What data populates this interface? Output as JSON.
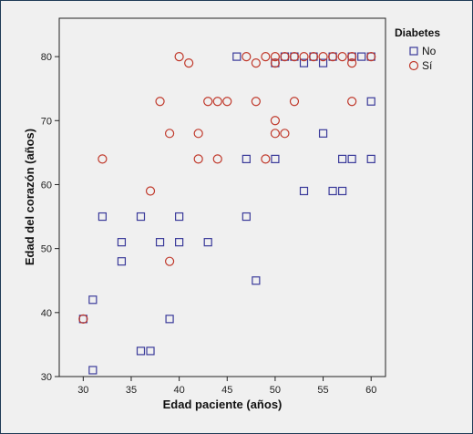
{
  "chart_data": {
    "type": "scatter",
    "xlabel": "Edad paciente (años)",
    "ylabel": "Edad del corazón (años)",
    "xlim": [
      27.5,
      61.5
    ],
    "ylim": [
      30,
      86
    ],
    "xticks": [
      30,
      35,
      40,
      45,
      50,
      55,
      60
    ],
    "yticks": [
      30,
      40,
      50,
      60,
      70,
      80
    ],
    "grid": false,
    "legend": {
      "title": "Diabetes",
      "placement": "top-right"
    },
    "series": [
      {
        "name": "No",
        "marker": "square",
        "color": "#3a3a9a",
        "points": [
          [
            30,
            39
          ],
          [
            31,
            42
          ],
          [
            31,
            31
          ],
          [
            32,
            55
          ],
          [
            34,
            51
          ],
          [
            34,
            48
          ],
          [
            36,
            55
          ],
          [
            36,
            34
          ],
          [
            37,
            34
          ],
          [
            38,
            51
          ],
          [
            39,
            39
          ],
          [
            40,
            55
          ],
          [
            40,
            51
          ],
          [
            43,
            51
          ],
          [
            46,
            80
          ],
          [
            47,
            64
          ],
          [
            47,
            55
          ],
          [
            48,
            45
          ],
          [
            50,
            79
          ],
          [
            50,
            64
          ],
          [
            51,
            80
          ],
          [
            52,
            80
          ],
          [
            53,
            79
          ],
          [
            53,
            59
          ],
          [
            54,
            80
          ],
          [
            55,
            79
          ],
          [
            55,
            68
          ],
          [
            56,
            80
          ],
          [
            56,
            59
          ],
          [
            57,
            64
          ],
          [
            57,
            59
          ],
          [
            58,
            80
          ],
          [
            58,
            64
          ],
          [
            59,
            80
          ],
          [
            60,
            80
          ],
          [
            60,
            73
          ],
          [
            60,
            64
          ]
        ]
      },
      {
        "name": "Sí",
        "marker": "circle",
        "color": "#c0392b",
        "points": [
          [
            30,
            39
          ],
          [
            32,
            64
          ],
          [
            37,
            59
          ],
          [
            38,
            73
          ],
          [
            39,
            68
          ],
          [
            39,
            48
          ],
          [
            40,
            80
          ],
          [
            41,
            79
          ],
          [
            42,
            68
          ],
          [
            42,
            64
          ],
          [
            43,
            73
          ],
          [
            44,
            73
          ],
          [
            44,
            64
          ],
          [
            45,
            73
          ],
          [
            47,
            80
          ],
          [
            48,
            79
          ],
          [
            48,
            73
          ],
          [
            49,
            80
          ],
          [
            49,
            64
          ],
          [
            50,
            80
          ],
          [
            50,
            79
          ],
          [
            50,
            70
          ],
          [
            50,
            68
          ],
          [
            51,
            80
          ],
          [
            51,
            68
          ],
          [
            52,
            80
          ],
          [
            52,
            73
          ],
          [
            53,
            80
          ],
          [
            54,
            80
          ],
          [
            55,
            80
          ],
          [
            56,
            80
          ],
          [
            57,
            80
          ],
          [
            58,
            80
          ],
          [
            58,
            79
          ],
          [
            58,
            73
          ],
          [
            60,
            80
          ]
        ]
      }
    ]
  }
}
